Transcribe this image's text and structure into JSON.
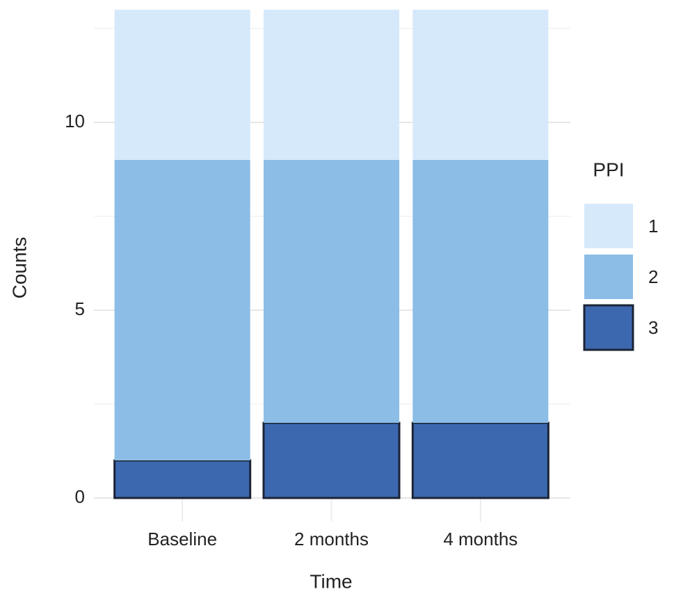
{
  "chart_data": {
    "type": "stacked_bar",
    "x_label": "Time",
    "y_label": "Counts",
    "categories": [
      "Baseline",
      "2 months",
      "4 months"
    ],
    "series": [
      {
        "name": "1",
        "color": "#d5e9fa",
        "values": [
          4,
          4,
          4
        ]
      },
      {
        "name": "2",
        "color": "#8cbde7",
        "values": [
          8,
          7,
          7
        ]
      },
      {
        "name": "3",
        "color": "#3c68b0",
        "values": [
          1,
          2,
          2
        ]
      }
    ],
    "legend_title": "PPI",
    "legend": "right",
    "ylim": [
      0,
      13
    ],
    "yticks": [
      0,
      5,
      10
    ],
    "minor_yticks": [
      2.5,
      7.5,
      12.5
    ],
    "grid": true
  }
}
